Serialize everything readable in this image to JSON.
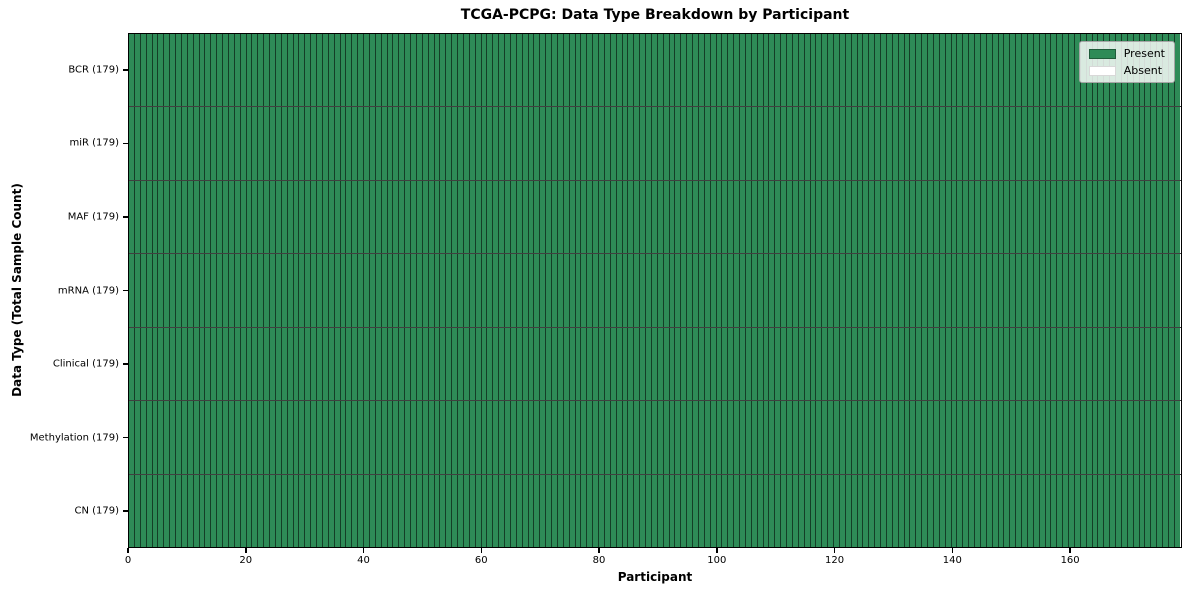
{
  "chart_data": {
    "type": "heatmap",
    "title": "TCGA-PCPG: Data Type Breakdown by Participant",
    "xlabel": "Participant",
    "ylabel": "Data Type (Total Sample Count)",
    "x_ticks": [
      0,
      20,
      40,
      60,
      80,
      100,
      120,
      140,
      160
    ],
    "xlim": [
      0,
      179
    ],
    "n_participants": 179,
    "rows": [
      {
        "data_type": "BCR",
        "label": "BCR (179)",
        "total_sample_count": 179,
        "present_count": 179,
        "absent_count": 0
      },
      {
        "data_type": "miR",
        "label": "miR (179)",
        "total_sample_count": 179,
        "present_count": 179,
        "absent_count": 0
      },
      {
        "data_type": "MAF",
        "label": "MAF (179)",
        "total_sample_count": 179,
        "present_count": 179,
        "absent_count": 0
      },
      {
        "data_type": "mRNA",
        "label": "mRNA (179)",
        "total_sample_count": 179,
        "present_count": 179,
        "absent_count": 0
      },
      {
        "data_type": "Clinical",
        "label": "Clinical (179)",
        "total_sample_count": 179,
        "present_count": 179,
        "absent_count": 0
      },
      {
        "data_type": "Methylation",
        "label": "Methylation (179)",
        "total_sample_count": 179,
        "present_count": 179,
        "absent_count": 0
      },
      {
        "data_type": "CN",
        "label": "CN (179)",
        "total_sample_count": 179,
        "present_count": 179,
        "absent_count": 0
      }
    ],
    "legend": [
      {
        "label": "Present",
        "color": "#2e8b57",
        "edge": "#1f5c3a"
      },
      {
        "label": "Absent",
        "color": "#ffffff",
        "edge": "#d8d8d8"
      }
    ],
    "legend_position": "upper right",
    "grid": false,
    "colors": {
      "present": "#2e8b57",
      "absent": "#ffffff",
      "cell_edge": "#0000008c",
      "row_separator": "#000000bf",
      "spine": "#000000",
      "background": "#ffffff"
    }
  }
}
